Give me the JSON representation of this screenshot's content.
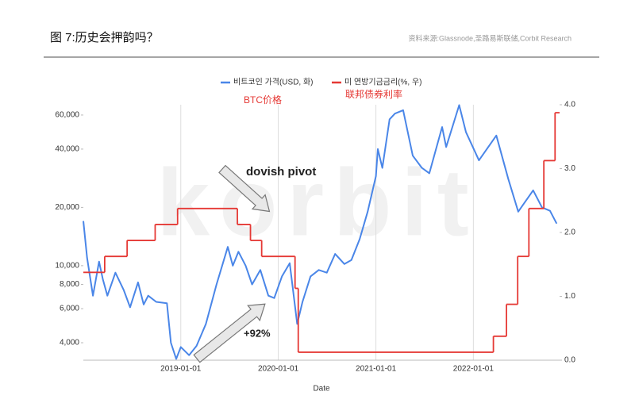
{
  "header": {
    "title": "图 7:历史会押韵吗？",
    "source": "资料来源:Glassnode,圣路易斯联储,Corbit Research"
  },
  "chart_data": {
    "type": "line",
    "x_label": "Date",
    "watermark": "korbit",
    "annotations": [
      {
        "text": "BTC价格",
        "color": "#e53935"
      },
      {
        "text": "联邦债券利率",
        "color": "#e53935"
      },
      {
        "text": "dovish pivot",
        "color": "#222222"
      },
      {
        "text": "+92%",
        "color": "#222222"
      }
    ],
    "xlim": [
      "2018-01-01",
      "2022-11-20"
    ],
    "xticks": [
      "2019-01-01",
      "2020-01-01",
      "2021-01-01",
      "2022-01-01"
    ],
    "grid": "x",
    "ylog": true,
    "ylim": [
      3250,
      67800
    ],
    "yticks": [
      {
        "value": 4000,
        "label": "4,000"
      },
      {
        "value": 6000,
        "label": "6,000"
      },
      {
        "value": 8000,
        "label": "8,000"
      },
      {
        "value": 10000,
        "label": "10,000"
      },
      {
        "value": 20000,
        "label": "20,000"
      },
      {
        "value": 40000,
        "label": "40,000"
      },
      {
        "value": 60000,
        "label": "60,000"
      }
    ],
    "y2lim": [
      0,
      4
    ],
    "y2ticks": [
      {
        "value": 0,
        "label": "0.0"
      },
      {
        "value": 1,
        "label": "1.0"
      },
      {
        "value": 2,
        "label": "2.0"
      },
      {
        "value": 3,
        "label": "3.0"
      },
      {
        "value": 4,
        "label": "4.0"
      }
    ],
    "series": [
      {
        "name": "비트코인 가격(USD, 화)",
        "color": "#4a86e8",
        "axis": "y",
        "x": [
          "2018-01-01",
          "2018-01-15",
          "2018-02-06",
          "2018-03-01",
          "2018-03-15",
          "2018-04-01",
          "2018-05-01",
          "2018-06-01",
          "2018-06-25",
          "2018-07-25",
          "2018-08-15",
          "2018-09-01",
          "2018-10-01",
          "2018-11-10",
          "2018-11-25",
          "2018-12-15",
          "2019-01-01",
          "2019-02-01",
          "2019-03-01",
          "2019-04-05",
          "2019-05-15",
          "2019-06-26",
          "2019-07-15",
          "2019-08-05",
          "2019-09-01",
          "2019-09-25",
          "2019-10-26",
          "2019-11-25",
          "2019-12-17",
          "2020-01-15",
          "2020-02-13",
          "2020-03-12",
          "2020-04-01",
          "2020-05-01",
          "2020-06-01",
          "2020-07-01",
          "2020-08-01",
          "2020-09-05",
          "2020-10-01",
          "2020-11-01",
          "2020-12-01",
          "2021-01-01",
          "2021-01-08",
          "2021-01-25",
          "2021-02-21",
          "2021-03-13",
          "2021-04-13",
          "2021-05-19",
          "2021-06-22",
          "2021-07-20",
          "2021-09-06",
          "2021-09-21",
          "2021-11-09",
          "2021-12-04",
          "2022-01-22",
          "2022-03-28",
          "2022-05-12",
          "2022-06-18",
          "2022-08-13",
          "2022-09-15",
          "2022-10-15",
          "2022-11-09"
        ],
        "values": [
          17000,
          11000,
          7000,
          10500,
          8500,
          7000,
          9200,
          7500,
          6100,
          8200,
          6300,
          7000,
          6500,
          6400,
          4000,
          3300,
          3800,
          3450,
          3850,
          5000,
          8000,
          12500,
          10000,
          11800,
          10000,
          8000,
          9500,
          7000,
          6800,
          8800,
          10300,
          5000,
          6500,
          8800,
          9500,
          9200,
          11500,
          10200,
          10700,
          13700,
          19000,
          29000,
          40000,
          32000,
          57000,
          61000,
          63500,
          37000,
          32000,
          30000,
          52000,
          41000,
          67500,
          49000,
          35000,
          47000,
          28000,
          19000,
          24500,
          20000,
          19200,
          16500
        ]
      },
      {
        "name": "미 연방기금금리(%, 우)",
        "color": "#e53935",
        "axis": "y2",
        "step": true,
        "x": [
          "2018-01-01",
          "2018-03-22",
          "2018-06-14",
          "2018-09-27",
          "2018-12-20",
          "2019-08-01",
          "2019-09-19",
          "2019-10-31",
          "2020-03-04",
          "2020-03-16",
          "2022-03-17",
          "2022-05-05",
          "2022-06-16",
          "2022-07-28",
          "2022-09-22",
          "2022-11-03"
        ],
        "values": [
          1.375,
          1.625,
          1.875,
          2.125,
          2.375,
          2.125,
          1.875,
          1.625,
          1.125,
          0.125,
          0.375,
          0.875,
          1.625,
          2.375,
          3.125,
          3.875
        ]
      }
    ]
  }
}
